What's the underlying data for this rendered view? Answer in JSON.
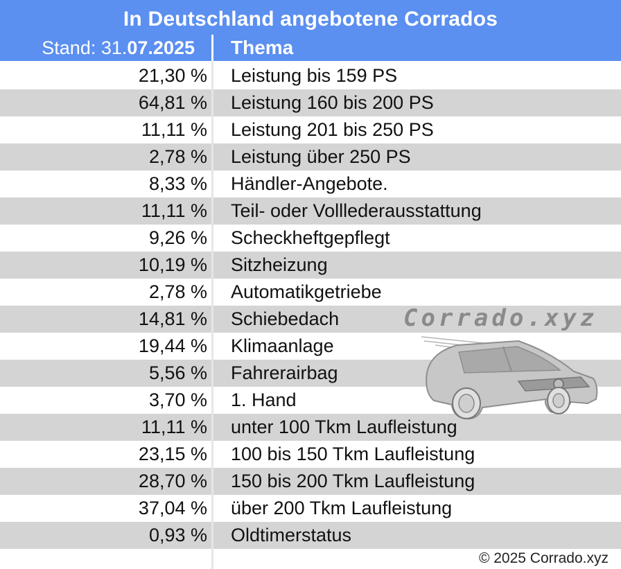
{
  "title": "In Deutschland angebotene Corrados",
  "subheader": {
    "stand_prefix": "Stand: 31.",
    "stand_date_bold": "07.2025",
    "topic_heading": "Thema"
  },
  "rows": [
    {
      "percent": "21,30 %",
      "topic": "Leistung bis 159 PS"
    },
    {
      "percent": "64,81 %",
      "topic": "Leistung 160 bis 200 PS"
    },
    {
      "percent": "11,11 %",
      "topic": "Leistung 201 bis 250 PS"
    },
    {
      "percent": "2,78 %",
      "topic": "Leistung über 250 PS"
    },
    {
      "percent": "8,33 %",
      "topic": "Händler-Angebote."
    },
    {
      "percent": "11,11 %",
      "topic": "Teil- oder Volllederausstattung"
    },
    {
      "percent": "9,26 %",
      "topic": "Scheckheftgepflegt"
    },
    {
      "percent": "10,19 %",
      "topic": "Sitzheizung"
    },
    {
      "percent": "2,78 %",
      "topic": "Automatikgetriebe"
    },
    {
      "percent": "14,81 %",
      "topic": "Schiebedach"
    },
    {
      "percent": "19,44 %",
      "topic": "Klimaanlage"
    },
    {
      "percent": "5,56 %",
      "topic": "Fahrerairbag"
    },
    {
      "percent": "3,70 %",
      "topic": "1. Hand"
    },
    {
      "percent": "11,11 %",
      "topic": "unter 100 Tkm Laufleistung"
    },
    {
      "percent": "23,15 %",
      "topic": "100 bis 150 Tkm Laufleistung"
    },
    {
      "percent": "28,70 %",
      "topic": "150 bis 200 Tkm Laufleistung"
    },
    {
      "percent": "37,04 %",
      "topic": "über 200 Tkm Laufleistung"
    },
    {
      "percent": "0,93 %",
      "topic": "Oldtimerstatus"
    }
  ],
  "watermark": {
    "text": "Corrado.xyz",
    "icon": "car-silhouette-icon"
  },
  "footer": {
    "copyright": "© 2025 Corrado.xyz"
  },
  "colors": {
    "header_bg": "#5b8ff0",
    "row_shade": "#d4d4d4",
    "text": "#111111"
  }
}
